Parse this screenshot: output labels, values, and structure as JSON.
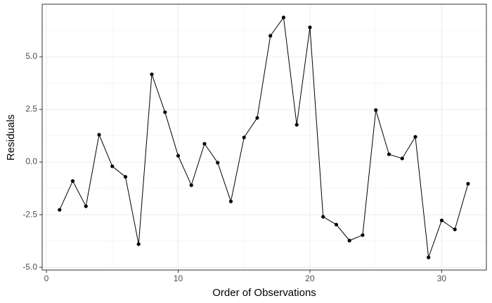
{
  "chart_data": {
    "type": "line",
    "x_label": "Order of Observations",
    "y_label": "Residuals",
    "x": [
      1,
      2,
      3,
      4,
      5,
      6,
      7,
      8,
      9,
      10,
      11,
      12,
      13,
      14,
      15,
      16,
      17,
      18,
      19,
      20,
      21,
      22,
      23,
      24,
      25,
      26,
      27,
      28,
      29,
      30,
      31,
      32
    ],
    "series": [
      {
        "color": "#000000",
        "values": [
          -2.27,
          -0.9,
          -2.1,
          1.3,
          -0.2,
          -0.7,
          -3.9,
          4.17,
          2.37,
          0.3,
          -1.1,
          0.87,
          -0.03,
          -1.87,
          1.17,
          2.1,
          6.0,
          6.87,
          1.77,
          6.4,
          -2.6,
          -2.97,
          -3.73,
          -3.47,
          2.47,
          0.37,
          0.17,
          1.2,
          -4.53,
          -2.77,
          -3.2,
          -1.03
        ]
      }
    ],
    "xlim": [
      -0.32,
      33.39
    ],
    "ylim": [
      -5.13,
      7.5
    ],
    "xticks": [
      0,
      10,
      20,
      30
    ],
    "yticks": [
      {
        "value": -5,
        "label": "-5.0"
      },
      {
        "value": -2.5,
        "label": "-2.5"
      },
      {
        "value": 0,
        "label": "0.0"
      },
      {
        "value": 2.5,
        "label": "2.5"
      },
      {
        "value": 5,
        "label": "5.0"
      }
    ],
    "grid": true,
    "minor_grid": true,
    "markers": true
  }
}
